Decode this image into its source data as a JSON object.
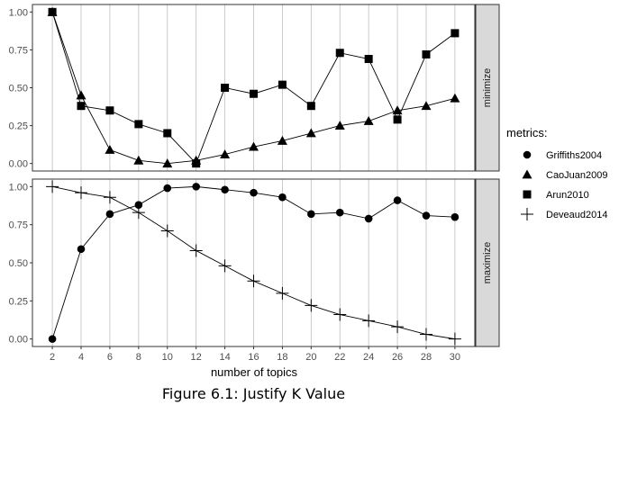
{
  "chart_data": {
    "type": "line",
    "x": [
      2,
      4,
      6,
      8,
      10,
      12,
      14,
      16,
      18,
      20,
      22,
      24,
      26,
      28,
      30
    ],
    "xlabel": "number of topics",
    "ylim": [
      0,
      1
    ],
    "yticks": [
      "0.00",
      "0.25",
      "0.50",
      "0.75",
      "1.00"
    ],
    "legend_title": "metrics:",
    "legend_position": "right",
    "grid": "vertical lines at x ticks",
    "panels": [
      {
        "strip_label": "minimize",
        "series": [
          {
            "name": "CaoJuan2009",
            "marker": "triangle",
            "values": [
              1.0,
              0.45,
              0.09,
              0.02,
              0.0,
              0.02,
              0.06,
              0.11,
              0.15,
              0.2,
              0.25,
              0.28,
              0.35,
              0.38,
              0.43
            ]
          },
          {
            "name": "Arun2010",
            "marker": "square",
            "values": [
              1.0,
              0.38,
              0.35,
              0.26,
              0.2,
              0.0,
              0.5,
              0.46,
              0.52,
              0.38,
              0.73,
              0.69,
              0.29,
              0.72,
              0.86
            ]
          }
        ]
      },
      {
        "strip_label": "maximize",
        "series": [
          {
            "name": "Griffiths2004",
            "marker": "circle",
            "values": [
              0.0,
              0.59,
              0.82,
              0.88,
              0.99,
              1.0,
              0.98,
              0.96,
              0.93,
              0.82,
              0.83,
              0.79,
              0.91,
              0.81,
              0.8
            ]
          },
          {
            "name": "Deveaud2014",
            "marker": "plus",
            "values": [
              1.0,
              0.96,
              0.93,
              0.83,
              0.71,
              0.58,
              0.48,
              0.38,
              0.3,
              0.22,
              0.16,
              0.12,
              0.08,
              0.03,
              0.0
            ]
          }
        ]
      }
    ],
    "legend": [
      {
        "name": "Griffiths2004",
        "marker": "circle"
      },
      {
        "name": "CaoJuan2009",
        "marker": "triangle"
      },
      {
        "name": "Arun2010",
        "marker": "square"
      },
      {
        "name": "Deveaud2014",
        "marker": "plus"
      }
    ]
  },
  "caption": "Figure 6.1: Justify K Value"
}
